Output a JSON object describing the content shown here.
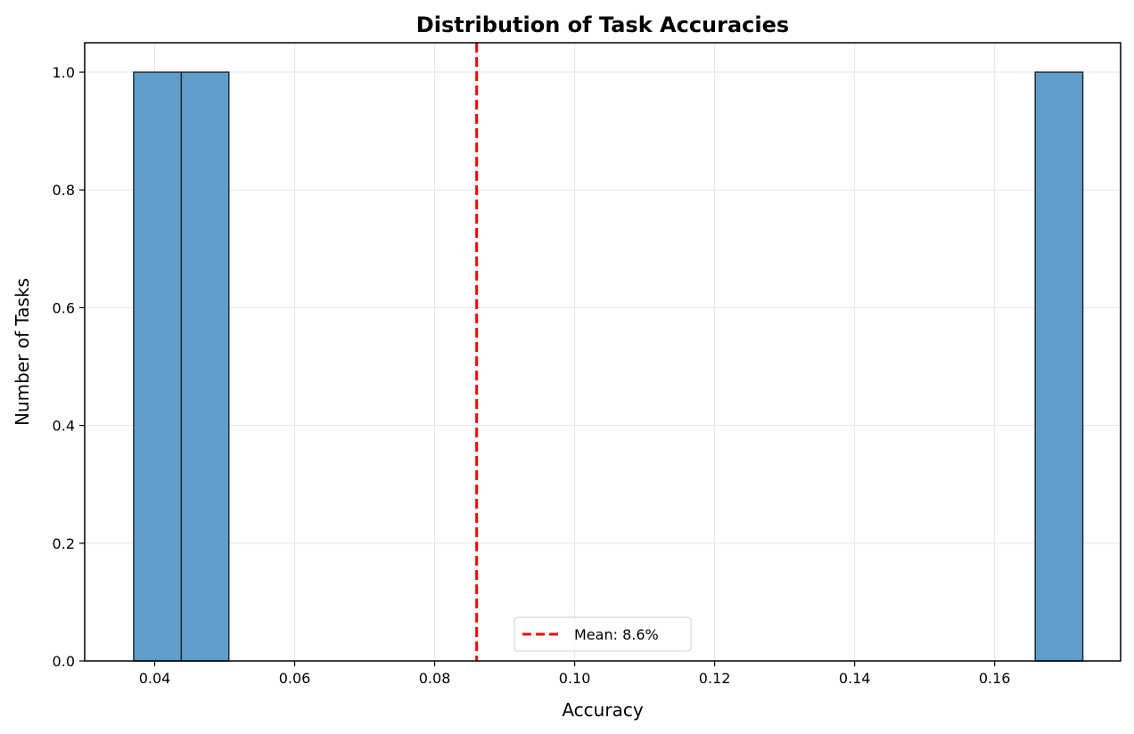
{
  "chart_data": {
    "type": "bar",
    "title": "Distribution of Task Accuracies",
    "xlabel": "Accuracy",
    "ylabel": "Number of Tasks",
    "xlim": [
      0.03,
      0.178
    ],
    "ylim": [
      0,
      1.05
    ],
    "xticks": [
      0.04,
      0.06,
      0.08,
      0.1,
      0.12,
      0.14,
      0.16
    ],
    "xtick_labels": [
      "0.04",
      "0.06",
      "0.08",
      "0.10",
      "0.12",
      "0.14",
      "0.16"
    ],
    "yticks": [
      0.0,
      0.2,
      0.4,
      0.6,
      0.8,
      1.0
    ],
    "ytick_labels": [
      "0.0",
      "0.2",
      "0.4",
      "0.6",
      "0.8",
      "1.0"
    ],
    "grid": true,
    "bars": [
      {
        "x_start": 0.037,
        "x_end": 0.0438,
        "count": 1
      },
      {
        "x_start": 0.0438,
        "x_end": 0.0506,
        "count": 1
      },
      {
        "x_start": 0.1658,
        "x_end": 0.1726,
        "count": 1
      }
    ],
    "bar_color": "#5f9ecb",
    "bar_edge_color": "#1f2a36",
    "mean_line": {
      "x": 0.086,
      "color": "#ff0000",
      "style": "dashed"
    },
    "legend": {
      "label": "Mean: 8.6%",
      "placement": "lower-center"
    }
  }
}
